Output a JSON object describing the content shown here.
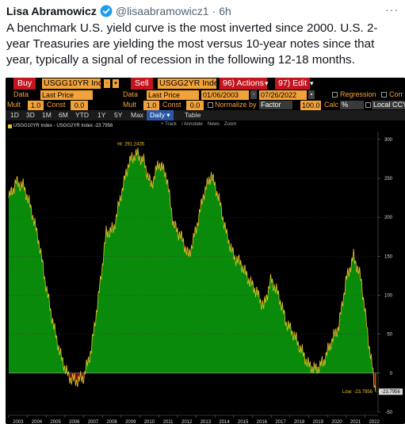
{
  "tweet": {
    "author_name": "Lisa Abramowicz",
    "handle": "@lisaabramowicz1",
    "separator": "·",
    "time": "6h",
    "more": "···",
    "text": "A benchmark U.S. yield curve is the most inverted since 2000. U.S. 2-year Treasuries are yielding the most versus 10-year notes since that year, typically a signal of recession in the following 12-18 months."
  },
  "terminal": {
    "row1": {
      "buy_label": "Buy",
      "buy_security": "USGG10YR Inc",
      "sell_label": "Sell",
      "sell_security": "USGG2YR Inde",
      "actions": "96) Actions",
      "edit": "97) Edit"
    },
    "row2": {
      "data_label": "Data",
      "data_value": "Last Price",
      "data_label2": "Data",
      "data_value2": "Last Price",
      "start_date": "01/06/2003",
      "end_date": "07/26/2022",
      "regression": "Regression",
      "corr": "Corr"
    },
    "row3": {
      "mult_label": "Mult",
      "mult_value": "1.0",
      "const_label": "Const",
      "const_value": "0.0",
      "mult_label2": "Mult",
      "mult_value2": "1.0",
      "const_label2": "Const",
      "const_value2": "0.0",
      "normalize_label": "Normalize by",
      "normalize_value": "Factor",
      "normalize_num": "100.0",
      "calc_label": "Calc",
      "calc_value": "%",
      "local_ccy": "Local CCY"
    },
    "tabs": [
      "1D",
      "3D",
      "1M",
      "6M",
      "YTD",
      "1Y",
      "5Y",
      "Max",
      "Daily ▾",
      "Table"
    ],
    "active_tab_index": 8
  },
  "chart_data": {
    "type": "area",
    "legend": "USGG10YR Index - USGG2YR Index -23.7956",
    "toolbar": [
      "+ Track",
      "/ Annotate",
      "News",
      "Zoom"
    ],
    "colors": {
      "fill_positive": "#0a8a0a",
      "fill_negative": "#7a0e0e",
      "line": "#e6c229",
      "axis_text": "#dddddd"
    },
    "ylim": [
      -50,
      310
    ],
    "yticks": [
      -50,
      0,
      50,
      100,
      150,
      200,
      250,
      300
    ],
    "xticks": [
      "2003",
      "2004",
      "2005",
      "2006",
      "2007",
      "2008",
      "2009",
      "2010",
      "2011",
      "2012",
      "2013",
      "2014",
      "2015",
      "2016",
      "2017",
      "2018",
      "2019",
      "2020",
      "2021",
      "2022"
    ],
    "x": [
      2003.0,
      2003.4,
      2003.8,
      2004.2,
      2004.6,
      2005.0,
      2005.4,
      2005.8,
      2006.2,
      2006.6,
      2007.0,
      2007.4,
      2007.8,
      2008.2,
      2008.6,
      2009.0,
      2009.4,
      2009.8,
      2010.2,
      2010.6,
      2011.0,
      2011.4,
      2011.8,
      2012.2,
      2012.6,
      2013.0,
      2013.4,
      2013.8,
      2014.2,
      2014.6,
      2015.0,
      2015.4,
      2015.8,
      2016.2,
      2016.6,
      2017.0,
      2017.4,
      2017.8,
      2018.2,
      2018.6,
      2019.0,
      2019.4,
      2019.8,
      2020.2,
      2020.6,
      2021.0,
      2021.4,
      2021.8,
      2022.2,
      2022.57
    ],
    "values": [
      225,
      245,
      240,
      210,
      170,
      110,
      60,
      20,
      -5,
      -10,
      -5,
      30,
      100,
      180,
      185,
      230,
      270,
      282,
      272,
      240,
      270,
      255,
      190,
      175,
      150,
      185,
      230,
      255,
      225,
      180,
      150,
      140,
      120,
      105,
      85,
      120,
      100,
      65,
      50,
      30,
      10,
      5,
      15,
      40,
      60,
      120,
      150,
      120,
      40,
      -23.7956
    ],
    "hi_annotation": "Hi: 291.2435",
    "low_annotation": "Low: -23.7956",
    "last_value_label": "-23.7956"
  }
}
